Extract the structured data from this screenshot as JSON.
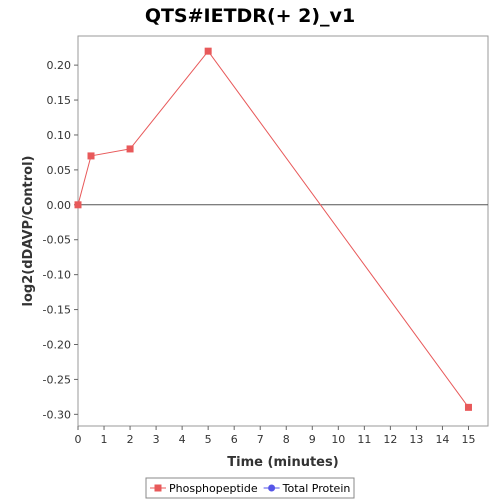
{
  "chart_data": {
    "type": "line",
    "title": "QTS#IETDR(+ 2)_v1",
    "xlabel": "Time (minutes)",
    "ylabel": "log2(dDAVP/Control)",
    "xlim": [
      0,
      15.75
    ],
    "ylim": [
      -0.3167,
      0.2417
    ],
    "x_ticks": [
      0,
      1,
      2,
      3,
      4,
      5,
      6,
      7,
      8,
      9,
      10,
      11,
      12,
      13,
      14,
      15
    ],
    "y_ticks": [
      0.2,
      0.15,
      0.1,
      0.05,
      0.0,
      -0.05,
      -0.1,
      -0.15,
      -0.2,
      -0.25,
      -0.3
    ],
    "y_tick_labels": [
      "0.20",
      "0.15",
      "0.10",
      "0.05",
      "0.00",
      "-0.05",
      "-0.10",
      "-0.15",
      "-0.20",
      "-0.25",
      "-0.30"
    ],
    "zero_line": true,
    "grid": false,
    "legend_position": "bottom",
    "series": [
      {
        "name": "Phosphopeptide",
        "color": "#e8595a",
        "marker": "square",
        "x": [
          0,
          0.5,
          2,
          5,
          15
        ],
        "y": [
          0.0,
          0.07,
          0.08,
          0.22,
          -0.29
        ]
      },
      {
        "name": "Total Protein",
        "color": "#5555e8",
        "marker": "circle",
        "x": [],
        "y": []
      }
    ]
  }
}
